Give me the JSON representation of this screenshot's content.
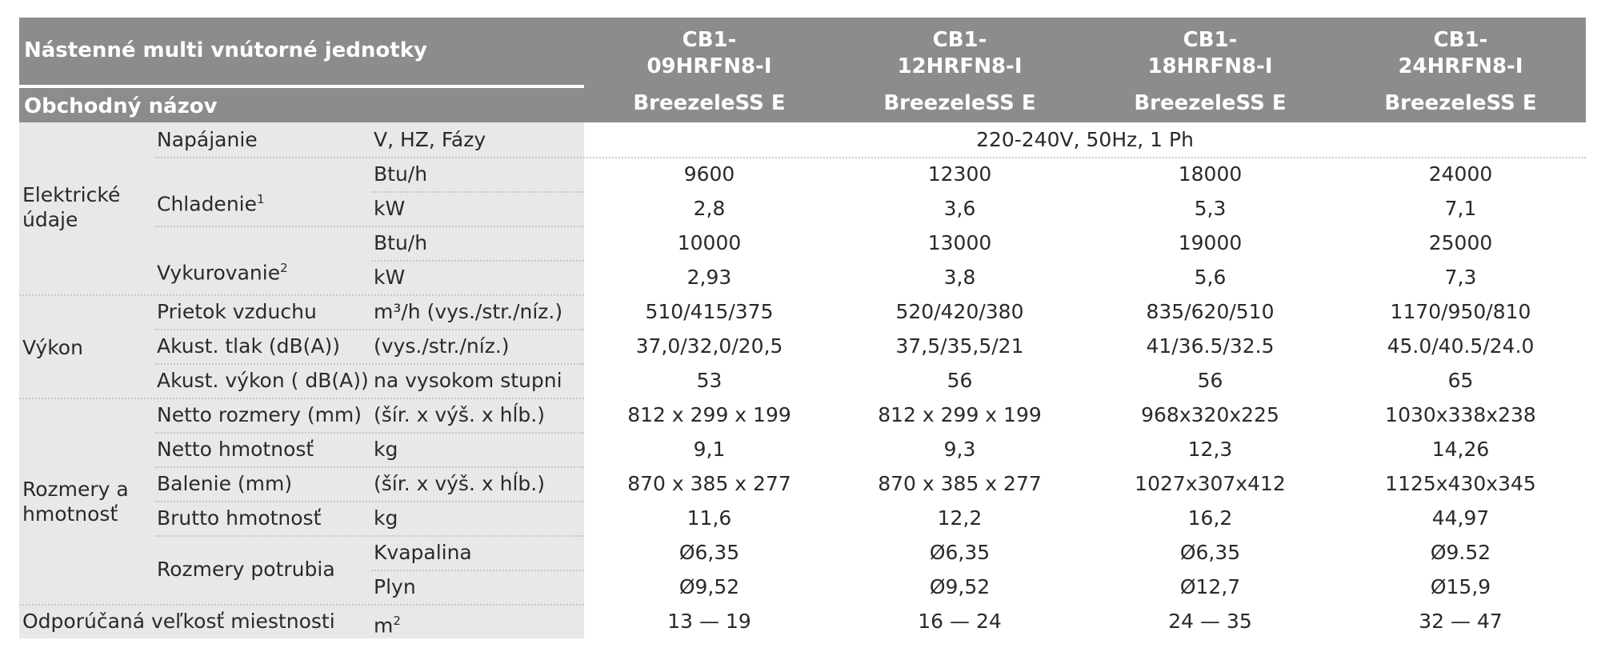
{
  "header": {
    "title": "Nástenné multi vnútorné jednotky",
    "trade_label": "Obchodný názov",
    "models": [
      {
        "line1": "CB1-",
        "line2": "09HRFN8-I",
        "trade": "BreezeleSS E"
      },
      {
        "line1": "CB1-",
        "line2": "12HRFN8-I",
        "trade": "BreezeleSS E"
      },
      {
        "line1": "CB1-",
        "line2": "18HRFN8-I",
        "trade": "BreezeleSS E"
      },
      {
        "line1": "CB1-",
        "line2": "24HRFN8-I",
        "trade": "BreezeleSS E"
      }
    ]
  },
  "groups": {
    "electric": [
      "Elektrické",
      "údaje"
    ],
    "performance": "Výkon",
    "dimensions": [
      "Rozmery a",
      "hmotnosť"
    ]
  },
  "rows": [
    {
      "param": "Napájanie",
      "unit": "V, HZ, Fázy",
      "merged": "220-240V, 50Hz, 1 Ph"
    },
    {
      "param": "Chladenie",
      "param_sup": "1",
      "unit": "Btu/h",
      "values": [
        "9600",
        "12300",
        "18000",
        "24000"
      ]
    },
    {
      "unit": "kW",
      "values": [
        "2,8",
        "3,6",
        "5,3",
        "7,1"
      ]
    },
    {
      "param": "Vykurovanie",
      "param_sup": "2",
      "unit": "Btu/h",
      "values": [
        "10000",
        "13000",
        "19000",
        "25000"
      ]
    },
    {
      "unit": "kW",
      "values": [
        "2,93",
        "3,8",
        "5,6",
        "7,3"
      ]
    },
    {
      "param": "Prietok vzduchu",
      "unit": "m³/h (vys./str./níz.)",
      "values": [
        "510/415/375",
        "520/420/380",
        "835/620/510",
        "1170/950/810"
      ]
    },
    {
      "param": "Akust. tlak (dB(A))",
      "unit": "(vys./str./níz.)",
      "values": [
        "37,0/32,0/20,5",
        "37,5/35,5/21",
        "41/36.5/32.5",
        "45.0/40.5/24.0"
      ]
    },
    {
      "param": "Akust. výkon ( dB(A))",
      "unit": "na vysokom stupni",
      "values": [
        "53",
        "56",
        "56",
        "65"
      ]
    },
    {
      "param": "Netto rozmery (mm)",
      "unit": "(šír. x výš. x hĺb.)",
      "values": [
        "812 x 299 x 199",
        "812 x 299 x 199",
        "968x320x225",
        "1030x338x238"
      ]
    },
    {
      "param": "Netto hmotnosť",
      "unit": "kg",
      "values": [
        "9,1",
        "9,3",
        "12,3",
        "14,26"
      ]
    },
    {
      "param": "Balenie (mm)",
      "unit": "(šír. x výš. x hĺb.)",
      "values": [
        "870 x 385 x 277",
        "870 x 385 x 277",
        "1027x307x412",
        "1125x430x345"
      ]
    },
    {
      "param": "Brutto hmotnosť",
      "unit": "kg",
      "values": [
        "11,6",
        "12,2",
        "16,2",
        "44,97"
      ]
    },
    {
      "param": "Rozmery potrubia",
      "unit": "Kvapalina",
      "values": [
        "Ø6,35",
        "Ø6,35",
        "Ø6,35",
        "Ø9.52"
      ]
    },
    {
      "unit": "Plyn",
      "values": [
        "Ø9,52",
        "Ø9,52",
        "Ø12,7",
        "Ø15,9"
      ]
    },
    {
      "param": "Odporúčaná veľkosť miestnosti",
      "unit": "m",
      "unit_sup": "2",
      "values": [
        "13 — 19",
        "16 — 24",
        "24 — 35",
        "32 — 47"
      ]
    }
  ],
  "colors": {
    "header_bg": "#8d8c8c",
    "label_bg": "#e9e8e8",
    "text": "#2a2a2a"
  }
}
